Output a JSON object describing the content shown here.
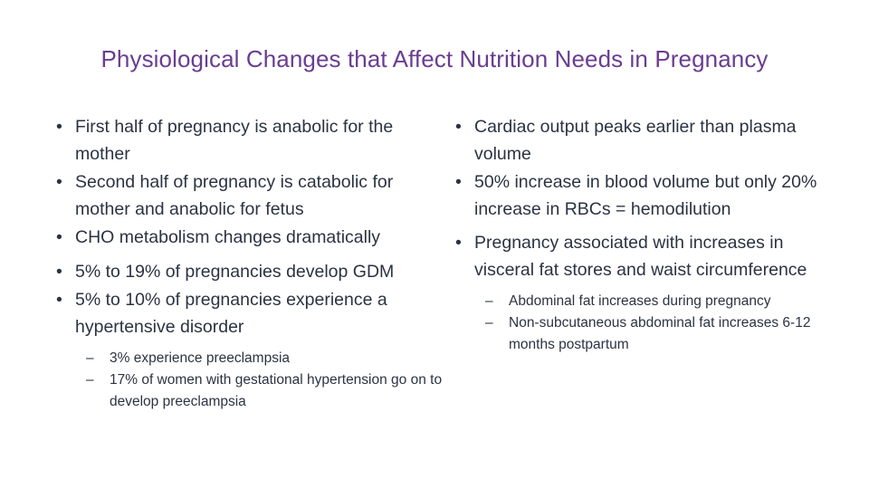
{
  "slide": {
    "title": "Physiological Changes that Affect Nutrition Needs in Pregnancy",
    "title_color": "#6a3d91",
    "text_color": "#2b3342",
    "bullet_glyph": "•",
    "dash_glyph": "–",
    "left_column": {
      "bullets": [
        {
          "text": "First half of pregnancy is anabolic for the mother"
        },
        {
          "text": "Second half of pregnancy is catabolic for mother and anabolic for fetus"
        },
        {
          "text": "CHO metabolism changes dramatically"
        },
        {
          "text": "5% to 19% of pregnancies develop GDM"
        },
        {
          "text": "5% to 10% of pregnancies experience a hypertensive disorder",
          "sub": [
            {
              "text": "3% experience preeclampsia"
            },
            {
              "text": "17% of women with gestational hypertension go on to develop preeclampsia"
            }
          ]
        }
      ]
    },
    "right_column": {
      "bullets": [
        {
          "text": "Cardiac output peaks earlier than plasma volume"
        },
        {
          "text": "50% increase in blood volume but only 20% increase in RBCs = hemodilution"
        },
        {
          "text": "Pregnancy associated with increases in visceral fat stores and waist circumference",
          "sub": [
            {
              "text": "Abdominal fat increases during pregnancy"
            },
            {
              "text": "Non-subcutaneous abdominal fat increases 6-12 months postpartum"
            }
          ]
        }
      ]
    }
  }
}
